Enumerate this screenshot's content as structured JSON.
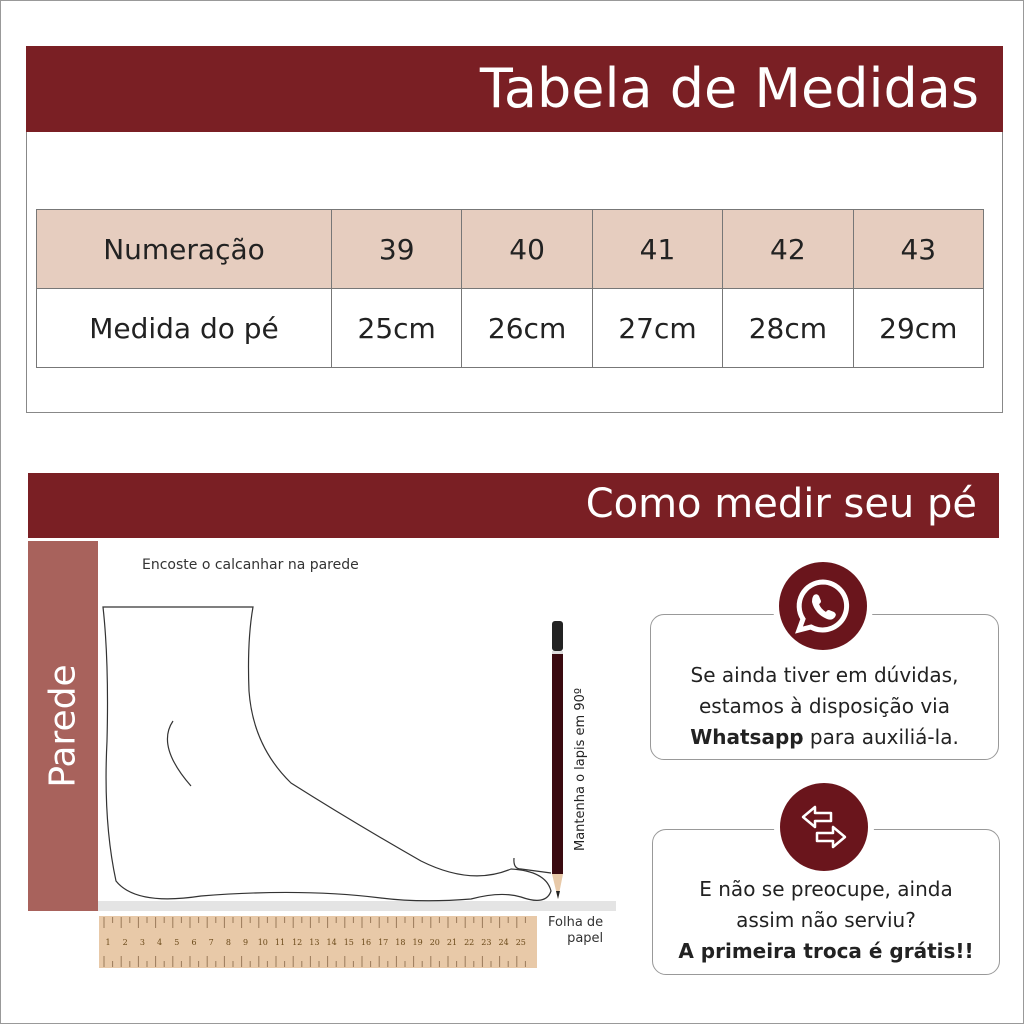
{
  "size_table": {
    "title": "Tabela de Medidas",
    "row_header_label": "Numeração",
    "row_value_label": "Medida do pé",
    "sizes": [
      "39",
      "40",
      "41",
      "42",
      "43"
    ],
    "measures": [
      "25cm",
      "26cm",
      "27cm",
      "28cm",
      "29cm"
    ]
  },
  "how_to": {
    "title": "Como medir seu pé",
    "wall_label": "Parede",
    "heel_instruction": "Encoste o calcanhar na parede",
    "pencil_instruction": "Mantenha o lapis em 90º",
    "paper_label_1": "Folha de",
    "paper_label_2": "papel",
    "ruler_numbers": [
      "1",
      "2",
      "3",
      "4",
      "5",
      "6",
      "7",
      "8",
      "9",
      "10",
      "11",
      "12",
      "13",
      "14",
      "15",
      "16",
      "17",
      "18",
      "19",
      "20",
      "21",
      "22",
      "23",
      "24",
      "25"
    ]
  },
  "whatsapp_note": {
    "icon": "whatsapp-icon",
    "line1": "Se ainda tiver em dúvidas,",
    "line2": "estamos à disposição via",
    "line3_bold": "Whatsapp",
    "line3_rest": " para auxiliá-la."
  },
  "exchange_note": {
    "icon": "exchange-arrows-icon",
    "line1": "E não se preocupe, ainda",
    "line2": "assim não serviu?",
    "line3": "A primeira troca é grátis!!"
  },
  "colors": {
    "brand": "#7a1f24",
    "table_header": "#e6cdbf",
    "wall": "#a8625c",
    "ruler": "#e8c9a8"
  }
}
